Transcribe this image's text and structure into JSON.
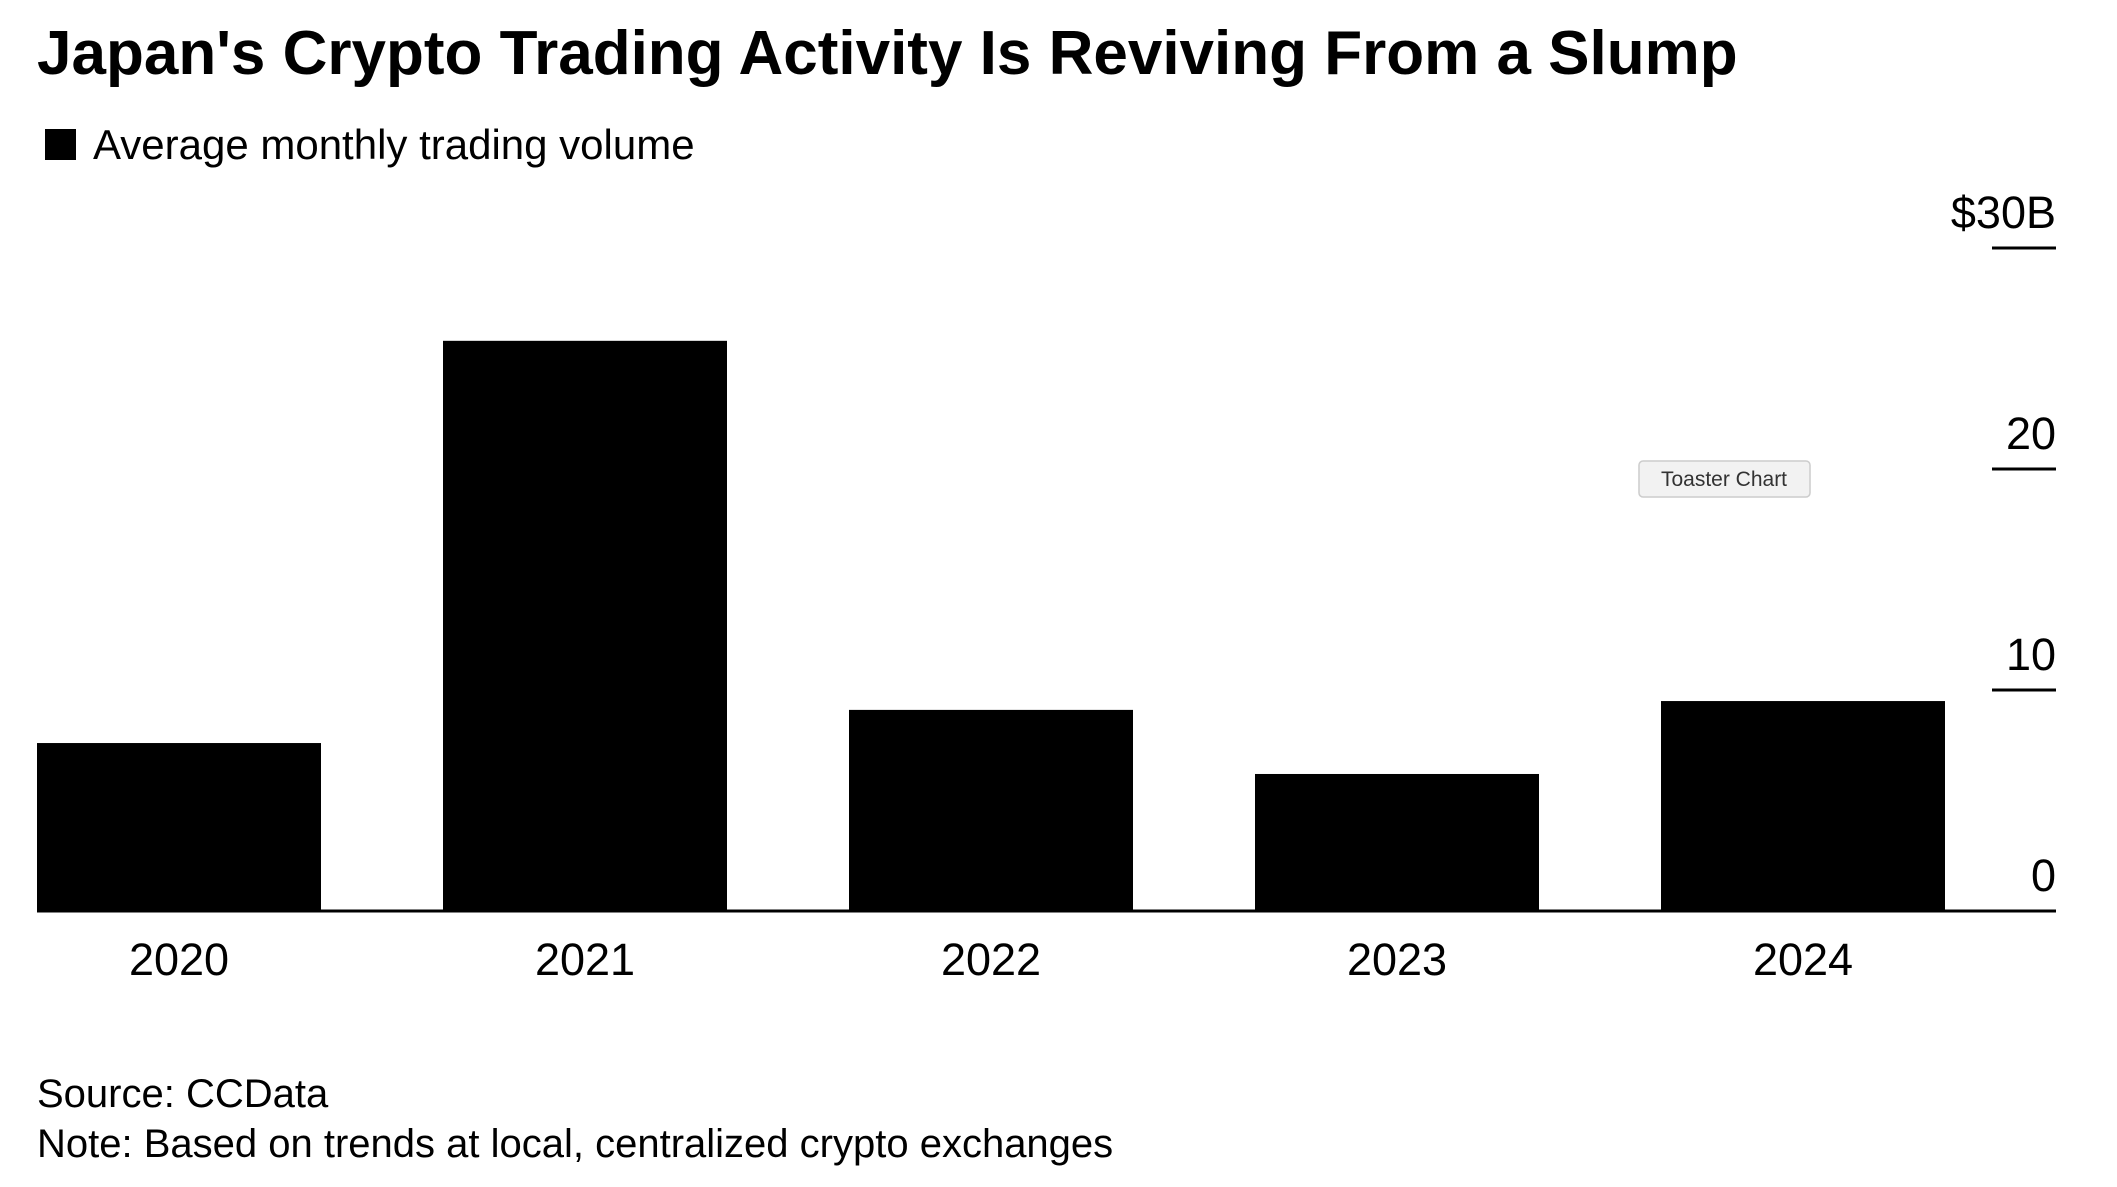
{
  "chart_data": {
    "type": "bar",
    "title": "Japan's Crypto Trading Activity Is Reviving From a Slump",
    "legend": "Average monthly trading volume",
    "categories": [
      "2020",
      "2021",
      "2022",
      "2023",
      "2024"
    ],
    "values": [
      7.6,
      25.8,
      9.1,
      6.2,
      9.5
    ],
    "color": "#000000",
    "ylim": [
      0,
      30
    ],
    "yticks": [
      0,
      10,
      20,
      {
        "value": 30,
        "label": "$30B"
      }
    ],
    "source": "Source: CCData",
    "note": "Note: Based on trends at local, centralized crypto exchanges",
    "tooltip": "Toaster Chart"
  }
}
